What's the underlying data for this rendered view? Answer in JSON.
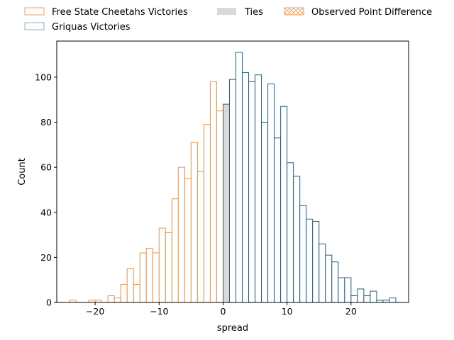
{
  "chart_data": {
    "type": "bar",
    "xlabel": "spread",
    "ylabel": "Count",
    "xlim": [
      -26,
      29
    ],
    "ylim": [
      0,
      116
    ],
    "x_ticks": [
      -20,
      -10,
      0,
      10,
      20
    ],
    "y_ticks": [
      0,
      20,
      40,
      60,
      80,
      100
    ],
    "bin_width": 1,
    "legend_position": "top, above plot",
    "legend": [
      {
        "key": "cheetahs",
        "label": "Free State Cheetahs Victories",
        "style": "outline",
        "color": "#f0a060"
      },
      {
        "key": "griquas",
        "label": "Griquas Victories",
        "style": "outline",
        "color": "#8fb0c4"
      },
      {
        "key": "ties",
        "label": "Ties",
        "style": "fill",
        "color": "#d9d9d9"
      },
      {
        "key": "observed",
        "label": "Observed Point Difference",
        "style": "hatched",
        "color": "#f0a060"
      }
    ],
    "series": [
      {
        "name": "Free State Cheetahs Victories",
        "color": "#e8944a",
        "bins": [
          {
            "x": -24,
            "count": 1
          },
          {
            "x": -23,
            "count": 0
          },
          {
            "x": -22,
            "count": 0
          },
          {
            "x": -21,
            "count": 1
          },
          {
            "x": -20,
            "count": 1
          },
          {
            "x": -19,
            "count": 0
          },
          {
            "x": -18,
            "count": 3
          },
          {
            "x": -17,
            "count": 2
          },
          {
            "x": -16,
            "count": 8
          },
          {
            "x": -15,
            "count": 15
          },
          {
            "x": -14,
            "count": 8
          },
          {
            "x": -13,
            "count": 22
          },
          {
            "x": -12,
            "count": 24
          },
          {
            "x": -11,
            "count": 22
          },
          {
            "x": -10,
            "count": 33
          },
          {
            "x": -9,
            "count": 31
          },
          {
            "x": -8,
            "count": 46
          },
          {
            "x": -7,
            "count": 60
          },
          {
            "x": -6,
            "count": 55
          },
          {
            "x": -5,
            "count": 71
          },
          {
            "x": -4,
            "count": 58
          },
          {
            "x": -3,
            "count": 79
          },
          {
            "x": -2,
            "count": 98
          },
          {
            "x": -1,
            "count": 85
          }
        ]
      },
      {
        "name": "Ties",
        "color": "#d9d9d9",
        "bins": [
          {
            "x": 0,
            "count": 88
          }
        ]
      },
      {
        "name": "Griquas Victories",
        "color": "#1f5f85",
        "bins": [
          {
            "x": 1,
            "count": 99
          },
          {
            "x": 2,
            "count": 111
          },
          {
            "x": 3,
            "count": 102
          },
          {
            "x": 4,
            "count": 98
          },
          {
            "x": 5,
            "count": 101
          },
          {
            "x": 6,
            "count": 80
          },
          {
            "x": 7,
            "count": 97
          },
          {
            "x": 8,
            "count": 73
          },
          {
            "x": 9,
            "count": 87
          },
          {
            "x": 10,
            "count": 62
          },
          {
            "x": 11,
            "count": 56
          },
          {
            "x": 12,
            "count": 43
          },
          {
            "x": 13,
            "count": 37
          },
          {
            "x": 14,
            "count": 36
          },
          {
            "x": 15,
            "count": 26
          },
          {
            "x": 16,
            "count": 21
          },
          {
            "x": 17,
            "count": 18
          },
          {
            "x": 18,
            "count": 11
          },
          {
            "x": 19,
            "count": 11
          },
          {
            "x": 20,
            "count": 3
          },
          {
            "x": 21,
            "count": 6
          },
          {
            "x": 22,
            "count": 3
          },
          {
            "x": 23,
            "count": 5
          },
          {
            "x": 24,
            "count": 1
          },
          {
            "x": 25,
            "count": 1
          },
          {
            "x": 26,
            "count": 2
          }
        ]
      }
    ]
  }
}
